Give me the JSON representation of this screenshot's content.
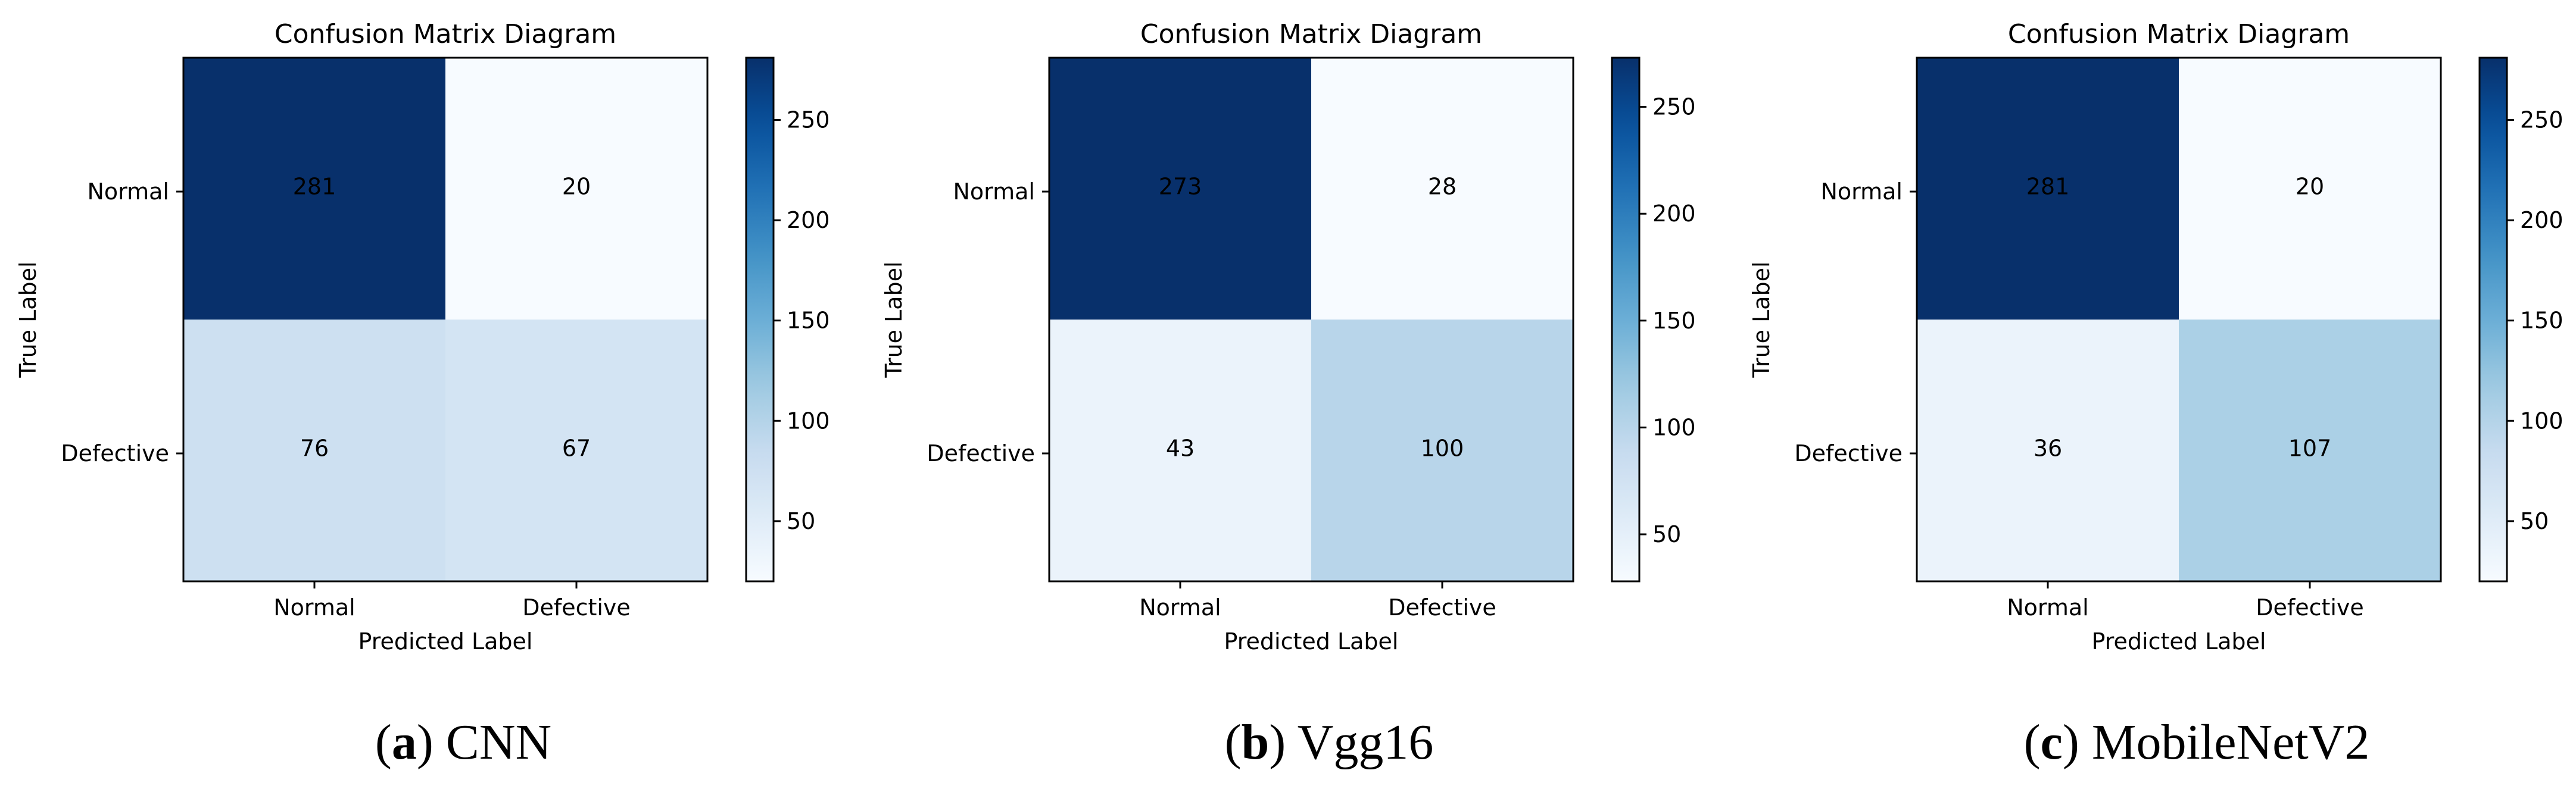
{
  "chart_data": [
    {
      "type": "heatmap",
      "title": "Confusion Matrix Diagram",
      "xlabel": "Predicted Label",
      "ylabel": "True Label",
      "x_categories": [
        "Normal",
        "Defective"
      ],
      "y_categories": [
        "Normal",
        "Defective"
      ],
      "values": [
        [
          281,
          20
        ],
        [
          76,
          67
        ]
      ],
      "colormap": "Blues",
      "colorbar_range": [
        20,
        281
      ],
      "colorbar_ticks": [
        50,
        100,
        150,
        200,
        250
      ],
      "caption_letter": "a",
      "caption_model": "CNN"
    },
    {
      "type": "heatmap",
      "title": "Confusion Matrix Diagram",
      "xlabel": "Predicted Label",
      "ylabel": "True Label",
      "x_categories": [
        "Normal",
        "Defective"
      ],
      "y_categories": [
        "Normal",
        "Defective"
      ],
      "values": [
        [
          273,
          28
        ],
        [
          43,
          100
        ]
      ],
      "colormap": "Blues",
      "colorbar_range": [
        28,
        273
      ],
      "colorbar_ticks": [
        50,
        100,
        150,
        200,
        250
      ],
      "caption_letter": "b",
      "caption_model": "Vgg16"
    },
    {
      "type": "heatmap",
      "title": "Confusion Matrix Diagram",
      "xlabel": "Predicted Label",
      "ylabel": "True Label",
      "x_categories": [
        "Normal",
        "Defective"
      ],
      "y_categories": [
        "Normal",
        "Defective"
      ],
      "values": [
        [
          281,
          20
        ],
        [
          36,
          107
        ]
      ],
      "colormap": "Blues",
      "colorbar_range": [
        20,
        281
      ],
      "colorbar_ticks": [
        50,
        100,
        150,
        200,
        250
      ],
      "caption_letter": "c",
      "caption_model": "MobileNetV2"
    }
  ]
}
